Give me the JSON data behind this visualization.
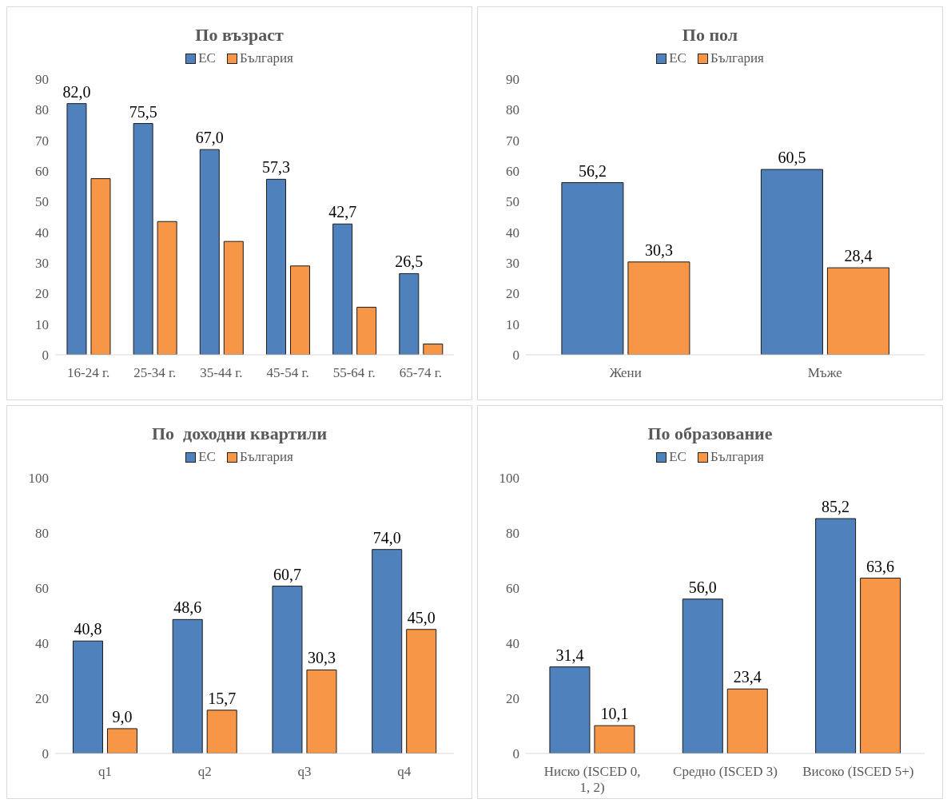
{
  "chart_data": [
    {
      "type": "bar",
      "title": "По възраст",
      "categories": [
        "16-24 г.",
        "25-34 г.",
        "35-44 г.",
        "45-54 г.",
        "55-64 г.",
        "65-74 г."
      ],
      "legend": "top",
      "ylim": [
        0,
        90
      ],
      "yticks": [
        0,
        10,
        20,
        30,
        40,
        50,
        60,
        70,
        80,
        90
      ],
      "series": [
        {
          "name": "ЕС",
          "color": "#4f81bd",
          "values": [
            82.0,
            75.5,
            67.0,
            57.3,
            42.7,
            26.5
          ],
          "value_labels": [
            "82,0",
            "75,5",
            "67,0",
            "57,3",
            "42,7",
            "26,5"
          ]
        },
        {
          "name": "България",
          "color": "#f79646",
          "values": [
            57.5,
            43.5,
            37,
            29,
            15.5,
            3.5
          ]
        }
      ]
    },
    {
      "type": "bar",
      "title": "По пол",
      "categories": [
        "Жени",
        "Мъже"
      ],
      "legend": "top",
      "ylim": [
        0,
        90
      ],
      "yticks": [
        0,
        10,
        20,
        30,
        40,
        50,
        60,
        70,
        80,
        90
      ],
      "series": [
        {
          "name": "ЕС",
          "color": "#4f81bd",
          "values": [
            56.2,
            60.5
          ],
          "value_labels": [
            "56,2",
            "60,5"
          ]
        },
        {
          "name": "България",
          "color": "#f79646",
          "values": [
            30.3,
            28.4
          ],
          "value_labels": [
            "30,3",
            "28,4"
          ]
        }
      ]
    },
    {
      "type": "bar",
      "title": "По  доходни квартили",
      "categories": [
        "q1",
        "q2",
        "q3",
        "q4"
      ],
      "legend": "top",
      "ylim": [
        0,
        100
      ],
      "yticks": [
        0,
        20,
        40,
        60,
        80,
        100
      ],
      "series": [
        {
          "name": "ЕС",
          "color": "#4f81bd",
          "values": [
            40.8,
            48.6,
            60.7,
            74.0
          ],
          "value_labels": [
            "40,8",
            "48,6",
            "60,7",
            "74,0"
          ]
        },
        {
          "name": "България",
          "color": "#f79646",
          "values": [
            9.0,
            15.7,
            30.3,
            45.0
          ],
          "value_labels": [
            "9,0",
            "15,7",
            "30,3",
            "45,0"
          ]
        }
      ]
    },
    {
      "type": "bar",
      "title": "По образование",
      "categories": [
        "Ниско (ISCED 0, 1, 2)",
        "Средно (ISCED 3)",
        "Високо (ISCED 5+)"
      ],
      "legend": "top",
      "ylim": [
        0,
        100
      ],
      "yticks": [
        0,
        20,
        40,
        60,
        80,
        100
      ],
      "series": [
        {
          "name": "ЕС",
          "color": "#4f81bd",
          "values": [
            31.4,
            56.0,
            85.2
          ],
          "value_labels": [
            "31,4",
            "56,0",
            "85,2"
          ]
        },
        {
          "name": "България",
          "color": "#f79646",
          "values": [
            10.1,
            23.4,
            63.6
          ],
          "value_labels": [
            "10,1",
            "23,4",
            "63,6"
          ]
        }
      ]
    }
  ]
}
